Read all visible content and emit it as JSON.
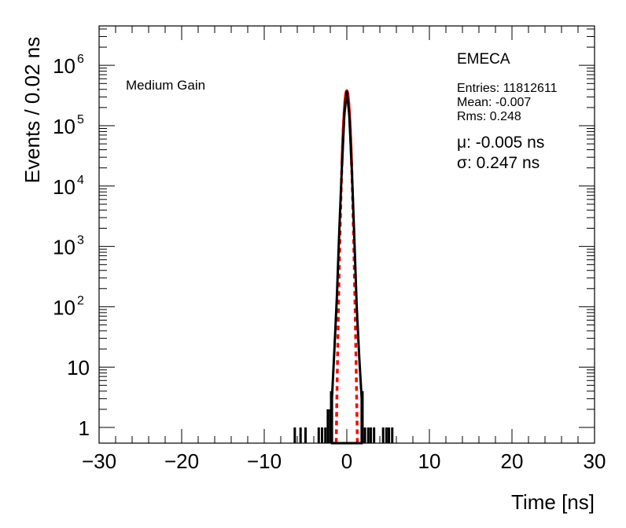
{
  "chart_data": {
    "type": "histogram",
    "title": "",
    "xlabel": "Time [ns]",
    "ylabel": "Events / 0.02 ns",
    "xlim": [
      -30,
      30
    ],
    "ylim": [
      0.55,
      4500000
    ],
    "yscale": "log",
    "grid": false,
    "x_ticks": [
      -30,
      -20,
      -10,
      0,
      10,
      20,
      30
    ],
    "x_tick_labels": [
      "−30",
      "−20",
      "−10",
      "0",
      "10",
      "20",
      "30"
    ],
    "y_ticks": [
      {
        "value": 1,
        "base": "1",
        "exp": ""
      },
      {
        "value": 10,
        "base": "10",
        "exp": ""
      },
      {
        "value": 100,
        "base": "10",
        "exp": "2"
      },
      {
        "value": 1000,
        "base": "10",
        "exp": "3"
      },
      {
        "value": 10000,
        "base": "10",
        "exp": "4"
      },
      {
        "value": 100000,
        "base": "10",
        "exp": "5"
      },
      {
        "value": 1000000,
        "base": "10",
        "exp": "6"
      }
    ],
    "label_left": "Medium Gain",
    "label_right": "EMECA",
    "stats": [
      "Entries: 11812611",
      "Mean: -0.007",
      "Rms: 0.248"
    ],
    "fit": {
      "mu_label": "μ: -0.005 ns",
      "sigma_label": "σ: 0.247 ns",
      "mu": -0.005,
      "sigma": 0.247,
      "peak": 380000,
      "color": "#ff0000"
    },
    "histogram": {
      "color": "#000000",
      "core": [
        {
          "x": -1.8,
          "y": 3
        },
        {
          "x": -1.5,
          "y": 20
        },
        {
          "x": -1.2,
          "y": 150
        },
        {
          "x": -0.9,
          "y": 2000
        },
        {
          "x": -0.6,
          "y": 20000
        },
        {
          "x": -0.3,
          "y": 150000
        },
        {
          "x": 0.0,
          "y": 380000
        },
        {
          "x": 0.3,
          "y": 150000
        },
        {
          "x": 0.6,
          "y": 20000
        },
        {
          "x": 0.9,
          "y": 1500
        },
        {
          "x": 1.2,
          "y": 100
        },
        {
          "x": 1.5,
          "y": 15
        },
        {
          "x": 1.8,
          "y": 3
        }
      ],
      "spikes": [
        {
          "x": -6.3,
          "y": 1
        },
        {
          "x": -5.6,
          "y": 1
        },
        {
          "x": -5.0,
          "y": 1
        },
        {
          "x": -3.4,
          "y": 1
        },
        {
          "x": -3.0,
          "y": 1
        },
        {
          "x": -2.6,
          "y": 1
        },
        {
          "x": -2.3,
          "y": 2
        },
        {
          "x": -2.0,
          "y": 2
        },
        {
          "x": -1.9,
          "y": 4
        },
        {
          "x": 1.9,
          "y": 4
        },
        {
          "x": 2.2,
          "y": 1
        },
        {
          "x": 2.6,
          "y": 1
        },
        {
          "x": 2.9,
          "y": 1
        },
        {
          "x": 3.3,
          "y": 1
        },
        {
          "x": 4.4,
          "y": 1
        },
        {
          "x": 4.8,
          "y": 1
        },
        {
          "x": 5.1,
          "y": 1
        },
        {
          "x": 5.5,
          "y": 1
        }
      ]
    }
  }
}
